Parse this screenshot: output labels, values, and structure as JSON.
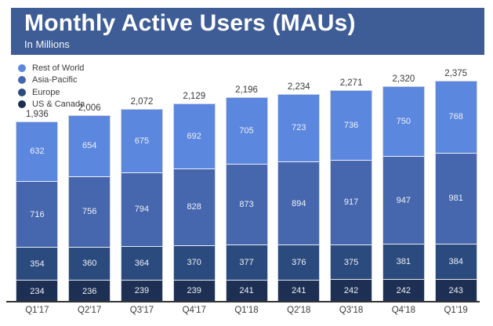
{
  "header": {
    "title": "Monthly Active Users (MAUs)",
    "subtitle": "In Millions"
  },
  "colors": {
    "banner": "#3e5c96",
    "rest_of_world": "#5c87de",
    "asia_pacific": "#4667ad",
    "europe": "#2b4a7d",
    "us_canada": "#1d2f52",
    "axis_line": "#333333",
    "text_dark": "#3a3a3a",
    "segment_label": "#eef1f8"
  },
  "chart_data": {
    "type": "bar",
    "stacked": true,
    "title": "Monthly Active Users (MAUs)",
    "subtitle": "In Millions",
    "unit": "millions",
    "grid": false,
    "legend_position": "top-left",
    "ylim": [
      0,
      2400
    ],
    "categories": [
      "Q1'17",
      "Q2'17",
      "Q3'17",
      "Q4'17",
      "Q1'18",
      "Q2'18",
      "Q3'18",
      "Q4'18",
      "Q1'19"
    ],
    "series": [
      {
        "name": "US & Canada",
        "color": "#1d2f52",
        "values": [
          234,
          236,
          239,
          239,
          241,
          241,
          242,
          242,
          243
        ]
      },
      {
        "name": "Europe",
        "color": "#2b4a7d",
        "values": [
          354,
          360,
          364,
          370,
          377,
          376,
          375,
          381,
          384
        ]
      },
      {
        "name": "Asia-Pacific",
        "color": "#4667ad",
        "values": [
          716,
          756,
          794,
          828,
          873,
          894,
          917,
          947,
          981
        ]
      },
      {
        "name": "Rest of World",
        "color": "#5c87de",
        "values": [
          632,
          654,
          675,
          692,
          705,
          723,
          736,
          750,
          768
        ]
      }
    ],
    "totals": [
      "1,936",
      "2,006",
      "2,072",
      "2,129",
      "2,196",
      "2,234",
      "2,271",
      "2,320",
      "2,375"
    ],
    "legend": [
      {
        "label": "Rest of World",
        "color": "#5c87de"
      },
      {
        "label": "Asia-Pacific",
        "color": "#4667ad"
      },
      {
        "label": "Europe",
        "color": "#2b4a7d"
      },
      {
        "label": "US & Canada",
        "color": "#1d2f52"
      }
    ]
  }
}
